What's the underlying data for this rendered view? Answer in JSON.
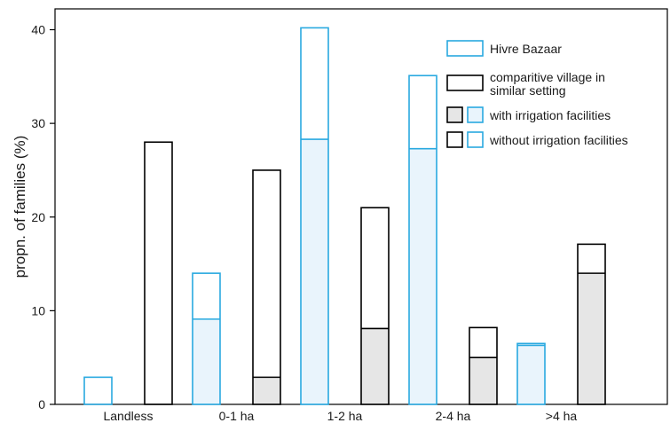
{
  "chart_data": {
    "type": "bar",
    "title": "",
    "xlabel": "",
    "ylabel": "propn. of families (%)",
    "ylim": [
      0,
      40
    ],
    "yticks": [
      0,
      10,
      20,
      30,
      40
    ],
    "categories": [
      "Landless",
      "0-1 ha",
      "1-2 ha",
      "2-4 ha",
      ">4 ha"
    ],
    "stacked": true,
    "series": [
      {
        "name": "Hivre Bazaar",
        "color": "#29a9e0",
        "fill_with_irrigation": "#e9f4fc",
        "total": [
          2.9,
          14.0,
          40.2,
          35.1,
          6.5
        ],
        "with_irrigation": [
          0,
          9.1,
          28.3,
          27.3,
          6.3
        ]
      },
      {
        "name": "comparitive village in similar setting",
        "color": "#000000",
        "fill_with_irrigation": "#e6e6e6",
        "total": [
          28.0,
          25.0,
          21.0,
          8.2,
          17.1
        ],
        "with_irrigation": [
          0,
          2.9,
          8.1,
          5.0,
          14.0
        ]
      }
    ],
    "legend": {
      "position": "top-right",
      "entries": [
        "Hivre Bazaar",
        "comparitive village in similar setting",
        "with irrigation facilities",
        "without irrigation facilities"
      ]
    }
  }
}
